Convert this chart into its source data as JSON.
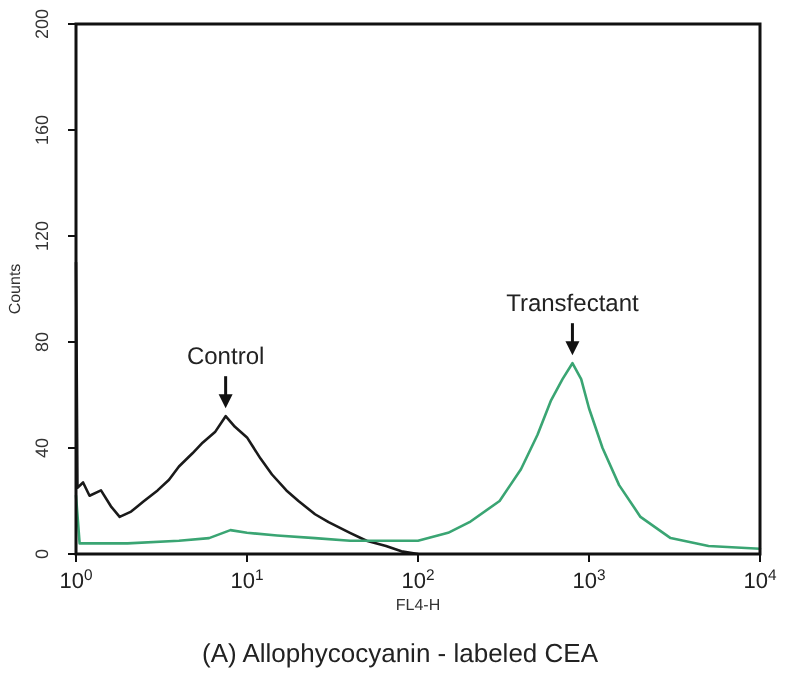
{
  "chart_data": {
    "type": "line",
    "title": "(A) Allophycocyanin - labeled CEA",
    "xlabel": "FL4-H",
    "ylabel": "Counts",
    "log": "x",
    "xlim": [
      1,
      10000
    ],
    "ylim": [
      0,
      200
    ],
    "xticks": [
      {
        "value": 1,
        "label": "10$^{0}$"
      },
      {
        "value": 10,
        "label": "10$^{1}$"
      },
      {
        "value": 100,
        "label": "10$^{2}$"
      },
      {
        "value": 1000,
        "label": "10$^{3}$"
      },
      {
        "value": 10000,
        "label": "10$^{4}$"
      }
    ],
    "yticks": [
      0,
      40,
      80,
      120,
      160,
      200
    ],
    "grid": false,
    "marker": "none",
    "line_style": "solid",
    "series": [
      {
        "color": "#1a1a1a",
        "x": [
          1,
          1.02,
          1.1,
          1.2,
          1.4,
          1.6,
          1.8,
          2.1,
          2.5,
          3,
          3.5,
          4,
          4.8,
          5.5,
          6.5,
          7.5,
          8.5,
          10,
          12,
          14,
          17,
          20,
          25,
          30,
          40,
          50,
          65,
          80,
          100
        ],
        "values": [
          110,
          25,
          27,
          22,
          24,
          18,
          14,
          16,
          20,
          24,
          28,
          33,
          38,
          42,
          46,
          52,
          48,
          44,
          36,
          30,
          24,
          20,
          15,
          12,
          8,
          5,
          3,
          1,
          0
        ]
      },
      {
        "color": "#3aa573",
        "x": [
          1,
          1.05,
          2,
          4,
          6,
          8,
          10,
          15,
          25,
          40,
          60,
          100,
          150,
          200,
          300,
          400,
          500,
          600,
          700,
          800,
          900,
          1000,
          1200,
          1500,
          2000,
          3000,
          5000,
          10000
        ],
        "values": [
          22,
          4,
          4,
          5,
          6,
          9,
          8,
          7,
          6,
          5,
          5,
          5,
          8,
          12,
          20,
          32,
          45,
          58,
          66,
          72,
          66,
          55,
          40,
          26,
          14,
          6,
          3,
          2
        ]
      }
    ],
    "annotations": [
      {
        "text": "Control",
        "x": 7.5,
        "y": 52
      },
      {
        "text": "Transfectant",
        "x": 800,
        "y": 72
      }
    ]
  }
}
